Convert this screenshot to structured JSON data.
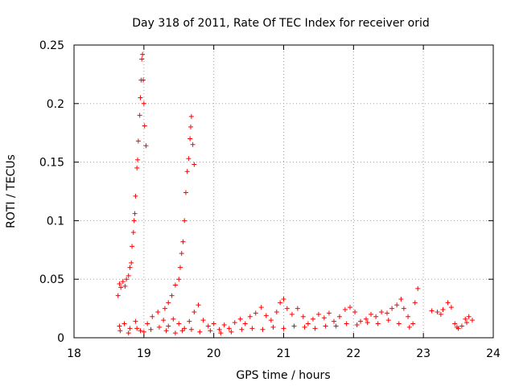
{
  "chart_data": {
    "type": "scatter",
    "title": "Day 318 of 2011, Rate Of TEC Index for receiver orid",
    "xlabel": "GPS time / hours",
    "ylabel": "ROTI / TECUs",
    "xlim": [
      18,
      24
    ],
    "ylim": [
      0,
      0.25
    ],
    "x_ticks": [
      "18",
      "19",
      "20",
      "21",
      "22",
      "23",
      "24"
    ],
    "y_ticks": [
      "0",
      "0.05",
      "0.1",
      "0.15",
      "0.2",
      "0.25"
    ],
    "grid": true,
    "marker": "+",
    "series": [
      {
        "color": "#ff0000",
        "points": [
          [
            18.63,
            0.036
          ],
          [
            18.65,
            0.046
          ],
          [
            18.67,
            0.043
          ],
          [
            18.7,
            0.048
          ],
          [
            18.73,
            0.044
          ],
          [
            18.75,
            0.05
          ],
          [
            18.78,
            0.053
          ],
          [
            18.8,
            0.06
          ],
          [
            18.82,
            0.064
          ],
          [
            18.83,
            0.078
          ],
          [
            18.85,
            0.09
          ],
          [
            18.86,
            0.1
          ],
          [
            18.87,
            0.106
          ],
          [
            18.88,
            0.121
          ],
          [
            18.9,
            0.145
          ],
          [
            18.91,
            0.152
          ],
          [
            18.92,
            0.168
          ],
          [
            18.94,
            0.19
          ],
          [
            18.95,
            0.205
          ],
          [
            18.96,
            0.22
          ],
          [
            18.97,
            0.238
          ],
          [
            18.98,
            0.242
          ],
          [
            18.99,
            0.22
          ],
          [
            19.0,
            0.2
          ],
          [
            19.01,
            0.181
          ],
          [
            19.03,
            0.164
          ],
          [
            19.3,
            0.025
          ],
          [
            19.35,
            0.03
          ],
          [
            19.4,
            0.036
          ],
          [
            19.45,
            0.045
          ],
          [
            19.5,
            0.05
          ],
          [
            19.52,
            0.06
          ],
          [
            19.54,
            0.072
          ],
          [
            19.56,
            0.082
          ],
          [
            19.58,
            0.1
          ],
          [
            19.6,
            0.124
          ],
          [
            19.62,
            0.142
          ],
          [
            19.64,
            0.153
          ],
          [
            19.66,
            0.17
          ],
          [
            19.67,
            0.18
          ],
          [
            19.68,
            0.189
          ],
          [
            19.7,
            0.165
          ],
          [
            19.72,
            0.148
          ],
          [
            18.65,
            0.01
          ],
          [
            18.72,
            0.012
          ],
          [
            18.8,
            0.008
          ],
          [
            18.88,
            0.014
          ],
          [
            18.95,
            0.006
          ],
          [
            19.05,
            0.012
          ],
          [
            19.12,
            0.018
          ],
          [
            19.2,
            0.022
          ],
          [
            19.28,
            0.015
          ],
          [
            19.35,
            0.01
          ],
          [
            19.42,
            0.016
          ],
          [
            19.5,
            0.012
          ],
          [
            19.58,
            0.008
          ],
          [
            19.65,
            0.014
          ],
          [
            19.72,
            0.022
          ],
          [
            19.78,
            0.028
          ],
          [
            19.85,
            0.015
          ],
          [
            19.92,
            0.01
          ],
          [
            20.0,
            0.012
          ],
          [
            20.08,
            0.007
          ],
          [
            20.15,
            0.011
          ],
          [
            20.22,
            0.008
          ],
          [
            20.3,
            0.013
          ],
          [
            20.38,
            0.016
          ],
          [
            20.45,
            0.012
          ],
          [
            20.52,
            0.018
          ],
          [
            20.6,
            0.021
          ],
          [
            20.68,
            0.026
          ],
          [
            20.75,
            0.019
          ],
          [
            20.82,
            0.015
          ],
          [
            20.9,
            0.022
          ],
          [
            20.95,
            0.03
          ],
          [
            21.0,
            0.033
          ],
          [
            21.05,
            0.025
          ],
          [
            21.12,
            0.02
          ],
          [
            21.2,
            0.025
          ],
          [
            21.28,
            0.018
          ],
          [
            21.35,
            0.012
          ],
          [
            21.42,
            0.016
          ],
          [
            21.5,
            0.02
          ],
          [
            21.58,
            0.017
          ],
          [
            21.65,
            0.021
          ],
          [
            21.72,
            0.014
          ],
          [
            21.8,
            0.018
          ],
          [
            21.88,
            0.024
          ],
          [
            21.95,
            0.026
          ],
          [
            22.02,
            0.022
          ],
          [
            22.1,
            0.014
          ],
          [
            22.18,
            0.016
          ],
          [
            22.25,
            0.02
          ],
          [
            22.32,
            0.018
          ],
          [
            22.4,
            0.022
          ],
          [
            22.48,
            0.021
          ],
          [
            22.55,
            0.025
          ],
          [
            22.62,
            0.028
          ],
          [
            22.68,
            0.033
          ],
          [
            22.72,
            0.025
          ],
          [
            22.78,
            0.018
          ],
          [
            22.85,
            0.012
          ],
          [
            22.88,
            0.03
          ],
          [
            22.92,
            0.042
          ],
          [
            23.12,
            0.023
          ],
          [
            23.2,
            0.022
          ],
          [
            23.28,
            0.024
          ],
          [
            23.35,
            0.03
          ],
          [
            23.4,
            0.026
          ],
          [
            23.45,
            0.012
          ],
          [
            23.5,
            0.008
          ],
          [
            23.55,
            0.01
          ],
          [
            23.6,
            0.016
          ],
          [
            23.65,
            0.018
          ],
          [
            23.7,
            0.015
          ],
          [
            18.66,
            0.006
          ],
          [
            18.78,
            0.004
          ],
          [
            18.9,
            0.008
          ],
          [
            19.0,
            0.005
          ],
          [
            19.1,
            0.007
          ],
          [
            19.22,
            0.009
          ],
          [
            19.32,
            0.006
          ],
          [
            19.45,
            0.004
          ],
          [
            19.55,
            0.006
          ],
          [
            19.68,
            0.007
          ],
          [
            19.8,
            0.005
          ],
          [
            19.95,
            0.006
          ],
          [
            20.1,
            0.004
          ],
          [
            20.25,
            0.005
          ],
          [
            20.4,
            0.007
          ],
          [
            20.55,
            0.008
          ],
          [
            20.7,
            0.007
          ],
          [
            20.85,
            0.009
          ],
          [
            21.0,
            0.008
          ],
          [
            21.15,
            0.01
          ],
          [
            21.3,
            0.009
          ],
          [
            21.45,
            0.008
          ],
          [
            21.6,
            0.01
          ],
          [
            21.75,
            0.01
          ],
          [
            21.9,
            0.012
          ],
          [
            22.05,
            0.011
          ],
          [
            22.2,
            0.013
          ],
          [
            22.35,
            0.012
          ],
          [
            22.5,
            0.015
          ],
          [
            22.65,
            0.012
          ],
          [
            22.8,
            0.009
          ],
          [
            23.25,
            0.02
          ],
          [
            23.48,
            0.009
          ],
          [
            23.62,
            0.013
          ]
        ]
      }
    ]
  }
}
